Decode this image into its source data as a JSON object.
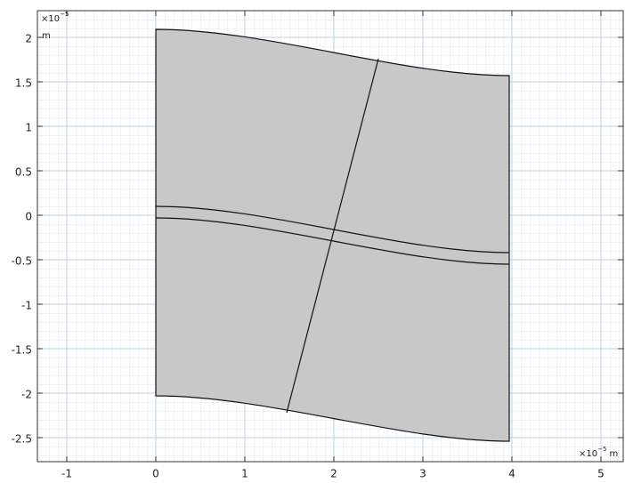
{
  "axes": {
    "xlim": [
      -1.33,
      5.25
    ],
    "ylim": [
      -2.77,
      2.3
    ],
    "xticks": [
      -1,
      0,
      1,
      2,
      3,
      4,
      5
    ],
    "yticks": [
      -2.5,
      -2,
      -1.5,
      -1,
      -0.5,
      0,
      0.5,
      1,
      1.5,
      2
    ],
    "x_scale": {
      "base": "×10",
      "power": "−5",
      "unit": "m"
    },
    "y_scale": {
      "base": "×10",
      "power": "−5",
      "unit": "m"
    }
  }
}
